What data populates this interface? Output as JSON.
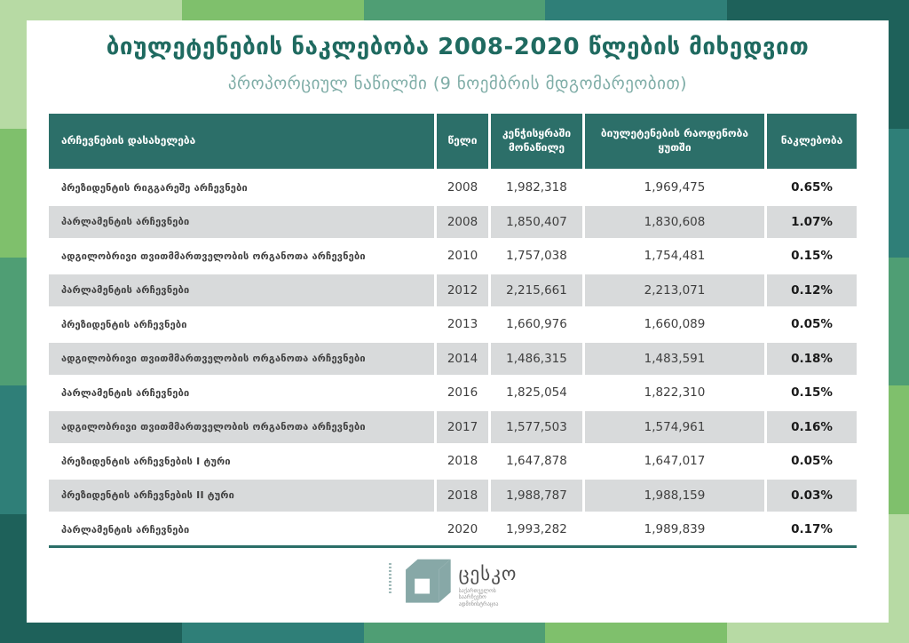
{
  "title": "ბიულეტენების ნაკლებობა 2008-2020 წლების მიხედვით",
  "subtitle": "პროპორციულ ნაწილში (9 ნოემბრის მდგომარეობით)",
  "table": {
    "headers": [
      "არჩევნების დასახელება",
      "წელი",
      "კენჭისყრაში მონაწილე",
      "ბიულეტენების რაოდენობა ყუთში",
      "ნაკლებობა"
    ],
    "rows": [
      [
        "პრეზიდენტის რიგგარეშე არჩევნები",
        "2008",
        "1,982,318",
        "1,969,475",
        "0.65%"
      ],
      [
        "პარლამენტის არჩევნები",
        "2008",
        "1,850,407",
        "1,830,608",
        "1.07%"
      ],
      [
        "ადგილობრივი თვითმმართველობის ორგანოთა არჩევნები",
        "2010",
        "1,757,038",
        "1,754,481",
        "0.15%"
      ],
      [
        "პარლამენტის არჩევნები",
        "2012",
        "2,215,661",
        "2,213,071",
        "0.12%"
      ],
      [
        "პრეზიდენტის არჩევნები",
        "2013",
        "1,660,976",
        "1,660,089",
        "0.05%"
      ],
      [
        "ადგილობრივი თვითმმართველობის ორგანოთა არჩევნები",
        "2014",
        "1,486,315",
        "1,483,591",
        "0.18%"
      ],
      [
        "პარლამენტის არჩევნები",
        "2016",
        "1,825,054",
        "1,822,310",
        "0.15%"
      ],
      [
        "ადგილობრივი თვითმმართველობის ორგანოთა არჩევნები",
        "2017",
        "1,577,503",
        "1,574,961",
        "0.16%"
      ],
      [
        "პრეზიდენტის არჩევნების I ტური",
        "2018",
        "1,647,878",
        "1,647,017",
        "0.05%"
      ],
      [
        "პრეზიდენტის არჩევნების II ტური",
        "2018",
        "1,988,787",
        "1,988,159",
        "0.03%"
      ],
      [
        "პარლამენტის არჩევნები",
        "2020",
        "1,993,282",
        "1,989,839",
        "0.17%"
      ]
    ]
  },
  "logo": {
    "name": "ცესკო",
    "subtext_lines": [
      "საქართველოს",
      "საარჩევნო",
      "ადმინისტრაცია"
    ]
  },
  "colors": {
    "header_bg": "#2c6f69",
    "row_alt": "#d8dadb",
    "title_color": "#1f6a60",
    "subtitle_color": "#7fada7",
    "text_color": "#3f3f3f",
    "pct_color": "#1a1a1a",
    "rule_color": "#2b6e68",
    "logo_color": "#87a8a7",
    "logo_text": "#4d4d4d",
    "logo_sub": "#999999"
  },
  "palette": [
    "#b7daa4",
    "#7fc06c",
    "#4f9e74",
    "#2f7f78",
    "#1e615a"
  ]
}
